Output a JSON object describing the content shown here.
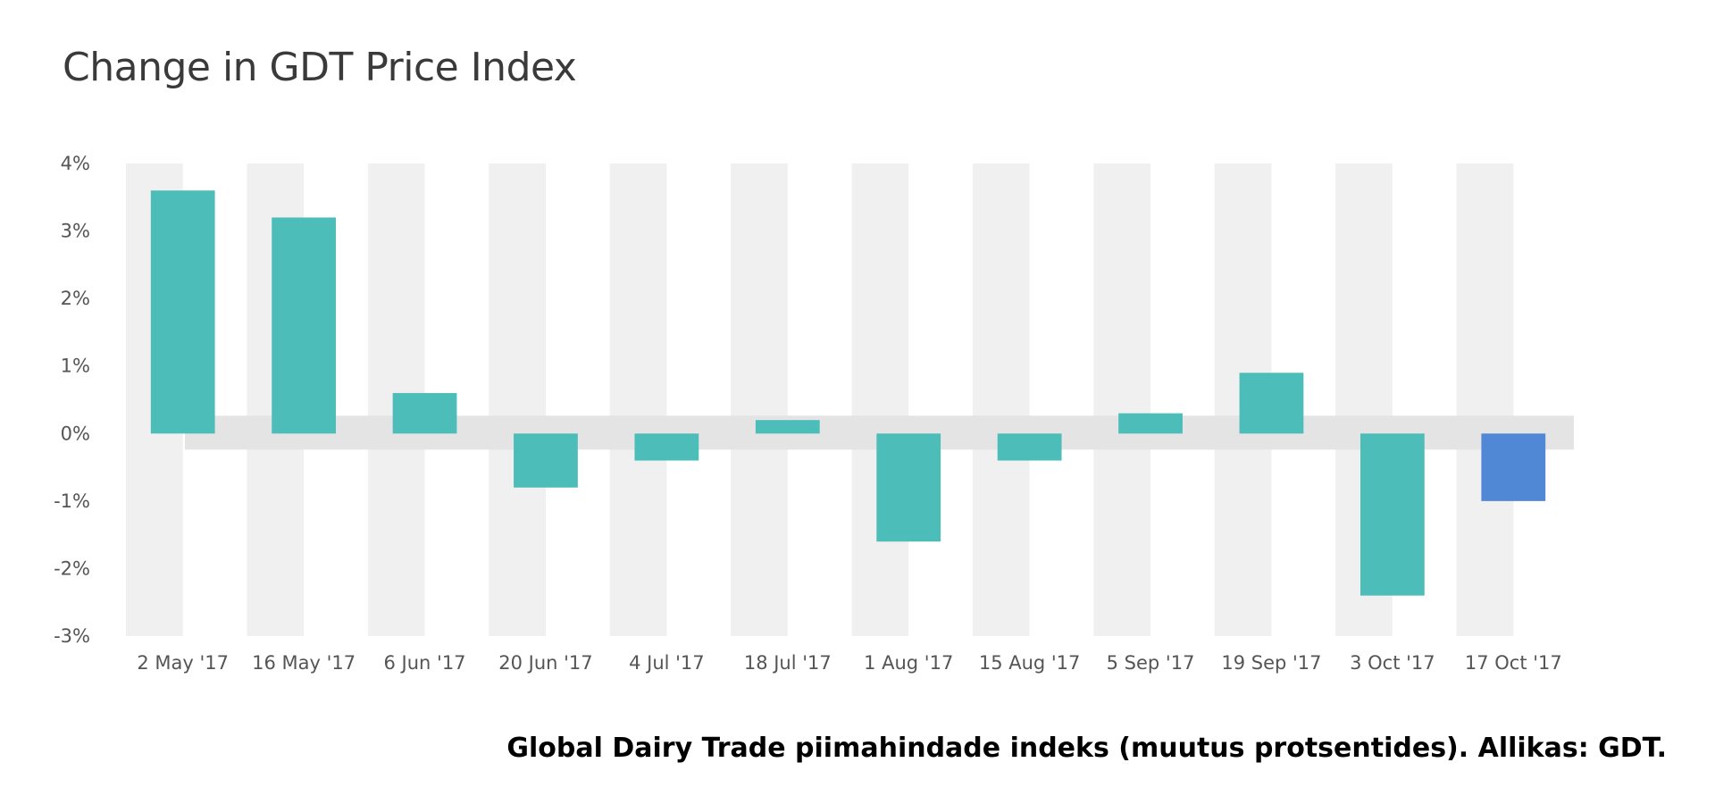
{
  "chart_data": {
    "type": "bar",
    "title": "Change in GDT Price Index",
    "xlabel": "",
    "ylabel": "",
    "categories": [
      "2 May '17",
      "16 May '17",
      "6 Jun '17",
      "20 Jun '17",
      "4 Jul '17",
      "18 Jul '17",
      "1 Aug '17",
      "15 Aug '17",
      "5 Sep '17",
      "19 Sep '17",
      "3 Oct '17",
      "17 Oct '17"
    ],
    "series": [
      {
        "values": [
          3.6,
          3.2,
          0.6,
          -0.8,
          -0.4,
          0.2,
          -1.6,
          -0.4,
          0.3,
          0.9,
          -2.4,
          -1.0
        ]
      }
    ],
    "y_ticks": [
      "4%",
      "3%",
      "2%",
      "1%",
      "0%",
      "-1%",
      "-2%",
      "-3%"
    ],
    "ylim": [
      -3,
      4
    ],
    "grid": false,
    "legend": "none",
    "colors": {
      "bar": "#4DBDBA",
      "last_bar": "#5088D6",
      "stripe": "#F0F0F0",
      "zero_band": "#E4E4E4"
    }
  },
  "caption": "Global Dairy Trade piimahindade indeks (muutus protsentides). Allikas: GDT."
}
